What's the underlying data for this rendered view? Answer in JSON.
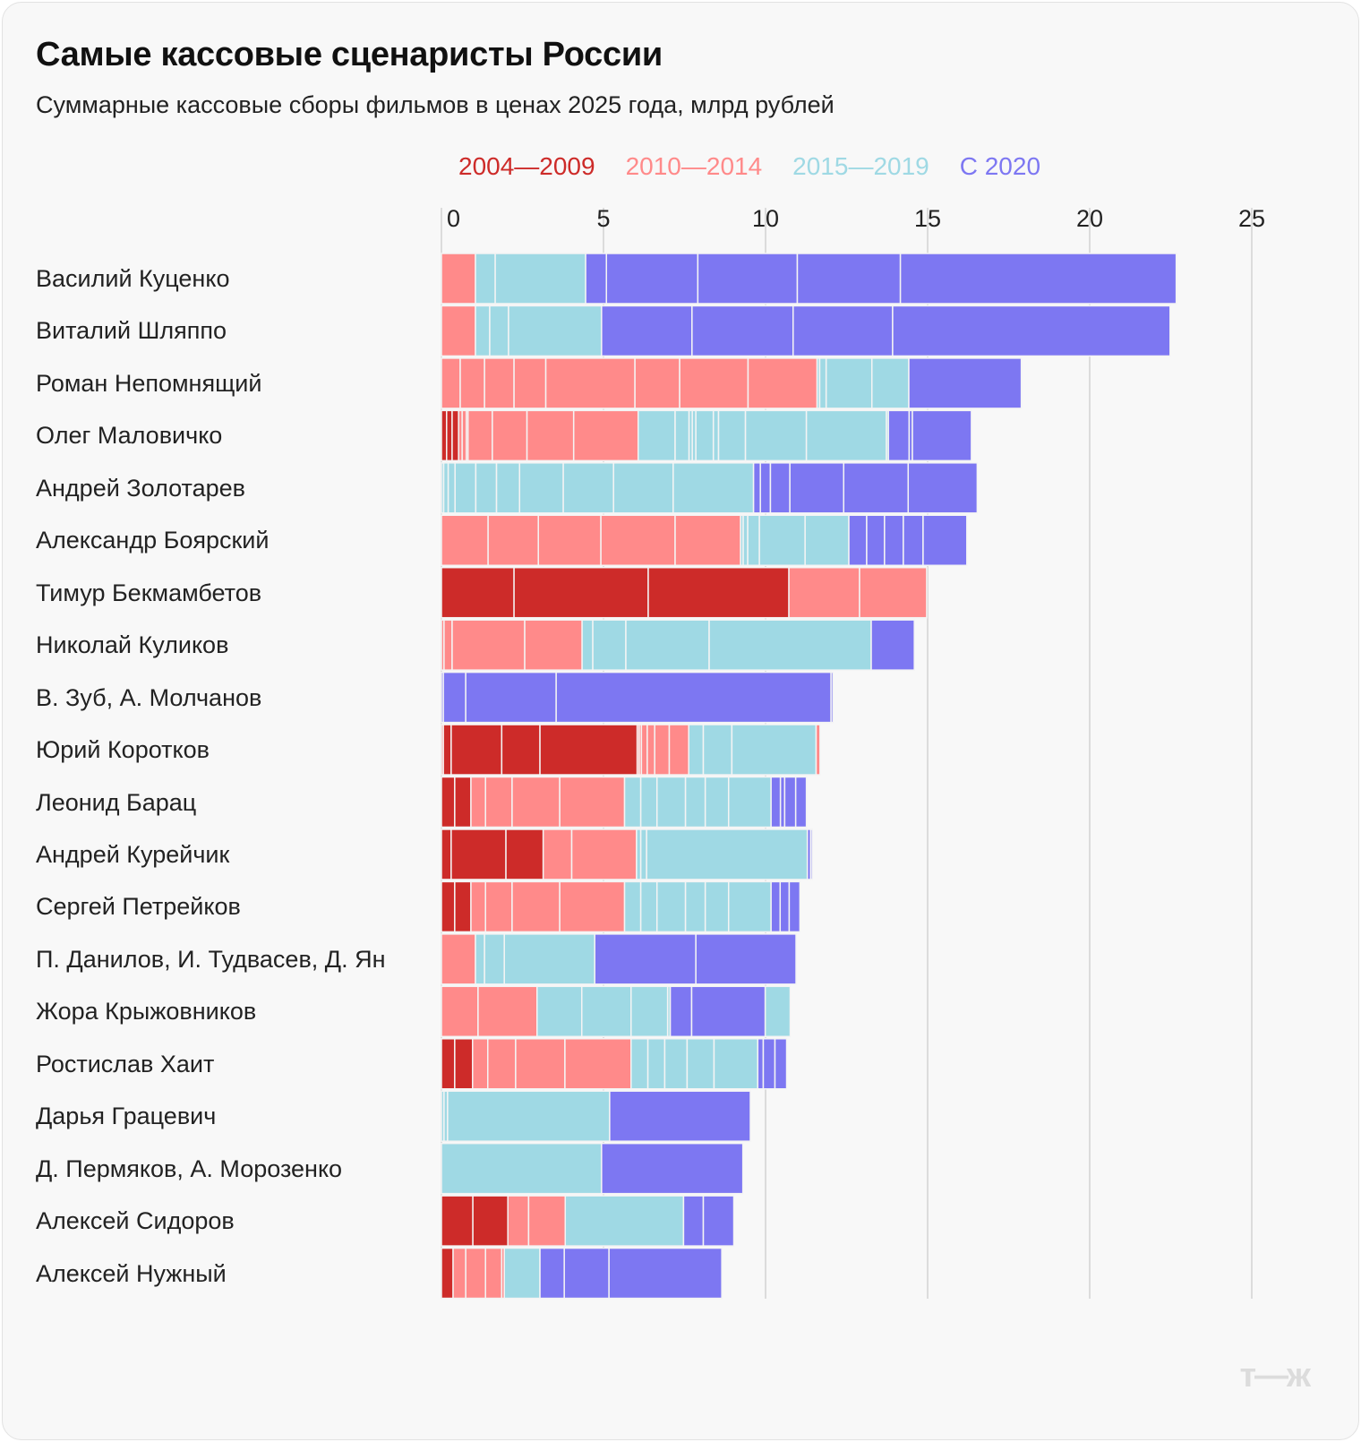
{
  "title": "Самые кассовые сценаристы России",
  "subtitle": "Суммарные кассовые сборы фильмов в ценах 2025 года, млрд рублей",
  "logo_text": "т—ж",
  "chart_data": {
    "type": "bar",
    "orientation": "horizontal",
    "stacked": true,
    "title": "Самые кассовые сценаристы России",
    "subtitle": "Суммарные кассовые сборы фильмов в ценах 2025 года, млрд рублей",
    "xlim": [
      0,
      25
    ],
    "x_ticks": [
      "0",
      "5",
      "10",
      "15",
      "20",
      "25"
    ],
    "x_tick_values": [
      0,
      5,
      10,
      15,
      20,
      25
    ],
    "grid": true,
    "legend_position": "top",
    "series": [
      {
        "name": "2004—2009",
        "color": "#CD2B29"
      },
      {
        "name": "2010—2014",
        "color": "#FF8A8A"
      },
      {
        "name": "2015—2019",
        "color": "#9FD9E4"
      },
      {
        "name": "С 2020",
        "color": "#7D77F2"
      }
    ],
    "rows": [
      {
        "label": "Василий Куценко",
        "segments": [
          [
            1,
            1.05
          ],
          [
            2,
            0.61
          ],
          [
            2,
            2.79
          ],
          [
            3,
            0.64
          ],
          [
            3,
            2.82
          ],
          [
            3,
            3.07
          ],
          [
            3,
            3.18
          ],
          [
            3,
            8.51
          ]
        ]
      },
      {
        "label": "Виталий Шляппо",
        "segments": [
          [
            1,
            1.05
          ],
          [
            2,
            0.44
          ],
          [
            2,
            0.58
          ],
          [
            2,
            2.87
          ],
          [
            3,
            2.79
          ],
          [
            3,
            3.12
          ],
          [
            3,
            3.07
          ],
          [
            3,
            8.56
          ]
        ]
      },
      {
        "label": "Роман Непомнящий",
        "segments": [
          [
            1,
            0.58
          ],
          [
            1,
            0.75
          ],
          [
            1,
            0.91
          ],
          [
            1,
            0.98
          ],
          [
            1,
            2.75
          ],
          [
            1,
            1.38
          ],
          [
            1,
            2.11
          ],
          [
            1,
            2.13
          ],
          [
            2,
            0.08
          ],
          [
            2,
            0.2
          ],
          [
            2,
            1.41
          ],
          [
            2,
            1.14
          ],
          [
            3,
            3.47
          ]
        ]
      },
      {
        "label": "Олег Маловичко",
        "segments": [
          [
            0,
            0.16
          ],
          [
            0,
            0.17
          ],
          [
            0,
            0.2
          ],
          [
            1,
            0.11
          ],
          [
            1,
            0.13
          ],
          [
            1,
            0.05
          ],
          [
            1,
            0.75
          ],
          [
            1,
            1.07
          ],
          [
            1,
            1.44
          ],
          [
            1,
            1.99
          ],
          [
            2,
            1.14
          ],
          [
            2,
            0.43
          ],
          [
            2,
            0.1
          ],
          [
            2,
            0.11
          ],
          [
            2,
            0.54
          ],
          [
            2,
            0.16
          ],
          [
            2,
            0.83
          ],
          [
            2,
            1.88
          ],
          [
            2,
            2.47
          ],
          [
            2,
            0.06
          ],
          [
            3,
            0.64
          ],
          [
            3,
            0.1
          ],
          [
            3,
            1.82
          ]
        ]
      },
      {
        "label": "Андрей Золотарев",
        "segments": [
          [
            2,
            0.07
          ],
          [
            2,
            0.14
          ],
          [
            2,
            0.21
          ],
          [
            2,
            0.64
          ],
          [
            2,
            0.64
          ],
          [
            2,
            0.71
          ],
          [
            2,
            1.35
          ],
          [
            2,
            1.55
          ],
          [
            2,
            1.84
          ],
          [
            2,
            2.48
          ],
          [
            3,
            0.21
          ],
          [
            3,
            0.31
          ],
          [
            3,
            0.6
          ],
          [
            3,
            1.66
          ],
          [
            3,
            1.99
          ],
          [
            3,
            2.13
          ]
        ]
      },
      {
        "label": "Александр Боярский",
        "segments": [
          [
            1,
            1.44
          ],
          [
            1,
            1.55
          ],
          [
            1,
            1.93
          ],
          [
            1,
            2.29
          ],
          [
            1,
            2.02
          ],
          [
            2,
            0.08
          ],
          [
            2,
            0.14
          ],
          [
            2,
            0.36
          ],
          [
            2,
            1.41
          ],
          [
            2,
            1.35
          ],
          [
            3,
            0.55
          ],
          [
            3,
            0.55
          ],
          [
            3,
            0.58
          ],
          [
            3,
            0.61
          ],
          [
            3,
            1.35
          ]
        ]
      },
      {
        "label": "Тимур Бекмамбетов",
        "segments": [
          [
            0,
            2.24
          ],
          [
            0,
            4.14
          ],
          [
            0,
            4.34
          ],
          [
            1,
            2.18
          ],
          [
            1,
            2.07
          ]
        ]
      },
      {
        "label": "Николай Куликов",
        "segments": [
          [
            1,
            0.08
          ],
          [
            1,
            0.25
          ],
          [
            1,
            2.24
          ],
          [
            1,
            1.77
          ],
          [
            2,
            0.33
          ],
          [
            2,
            1.02
          ],
          [
            2,
            2.57
          ],
          [
            2,
            5.0
          ],
          [
            3,
            1.33
          ]
        ]
      },
      {
        "label": "В. Зуб, А. Молчанов",
        "segments": [
          [
            3,
            0.06
          ],
          [
            3,
            0.69
          ],
          [
            3,
            2.79
          ],
          [
            3,
            8.48
          ],
          [
            3,
            0.06
          ]
        ]
      },
      {
        "label": "Юрий Коротков",
        "segments": [
          [
            1,
            0.06
          ],
          [
            0,
            0.24
          ],
          [
            0,
            1.56
          ],
          [
            0,
            1.18
          ],
          [
            0,
            3.0
          ],
          [
            1,
            0.06
          ],
          [
            1,
            0.07
          ],
          [
            1,
            0.18
          ],
          [
            1,
            0.23
          ],
          [
            1,
            0.45
          ],
          [
            1,
            0.6
          ],
          [
            2,
            0.45
          ],
          [
            2,
            0.88
          ],
          [
            2,
            2.6
          ],
          [
            1,
            0.12
          ]
        ]
      },
      {
        "label": "Леонид Барац",
        "segments": [
          [
            0,
            0.41
          ],
          [
            0,
            0.5
          ],
          [
            1,
            0.45
          ],
          [
            1,
            0.82
          ],
          [
            1,
            1.47
          ],
          [
            1,
            2.0
          ],
          [
            2,
            0.5
          ],
          [
            2,
            0.5
          ],
          [
            2,
            0.88
          ],
          [
            2,
            0.61
          ],
          [
            2,
            0.72
          ],
          [
            2,
            1.31
          ],
          [
            3,
            0.29
          ],
          [
            3,
            0.13
          ],
          [
            3,
            0.34
          ],
          [
            3,
            0.33
          ]
        ]
      },
      {
        "label": "Андрей Курейчик",
        "segments": [
          [
            0,
            0.3
          ],
          [
            0,
            1.69
          ],
          [
            0,
            1.15
          ],
          [
            1,
            0.88
          ],
          [
            1,
            2.0
          ],
          [
            2,
            0.13
          ],
          [
            2,
            0.18
          ],
          [
            2,
            4.96
          ],
          [
            3,
            0.1
          ],
          [
            3,
            0.05
          ]
        ]
      },
      {
        "label": "Сергей Петрейков",
        "segments": [
          [
            0,
            0.41
          ],
          [
            0,
            0.5
          ],
          [
            1,
            0.45
          ],
          [
            1,
            0.82
          ],
          [
            1,
            1.47
          ],
          [
            1,
            2.0
          ],
          [
            2,
            0.5
          ],
          [
            2,
            0.5
          ],
          [
            2,
            0.88
          ],
          [
            2,
            0.61
          ],
          [
            2,
            0.72
          ],
          [
            2,
            1.31
          ],
          [
            3,
            0.28
          ],
          [
            3,
            0.28
          ],
          [
            3,
            0.33
          ]
        ]
      },
      {
        "label": "П. Данилов, И. Тудвасев, Д. Ян",
        "segments": [
          [
            1,
            1.05
          ],
          [
            2,
            0.28
          ],
          [
            2,
            0.61
          ],
          [
            2,
            2.79
          ],
          [
            3,
            3.12
          ],
          [
            3,
            3.09
          ]
        ]
      },
      {
        "label": "Жора Крыжовников",
        "segments": [
          [
            1,
            1.13
          ],
          [
            1,
            1.82
          ],
          [
            2,
            1.38
          ],
          [
            2,
            1.52
          ],
          [
            2,
            1.13
          ],
          [
            2,
            0.08
          ],
          [
            3,
            0.66
          ],
          [
            3,
            2.27
          ],
          [
            2,
            0.77
          ]
        ]
      },
      {
        "label": "Ростислав Хаит",
        "segments": [
          [
            0,
            0.41
          ],
          [
            0,
            0.55
          ],
          [
            1,
            0.47
          ],
          [
            1,
            0.86
          ],
          [
            1,
            1.52
          ],
          [
            1,
            2.04
          ],
          [
            2,
            0.52
          ],
          [
            2,
            0.52
          ],
          [
            2,
            0.69
          ],
          [
            2,
            0.83
          ],
          [
            2,
            1.35
          ],
          [
            3,
            0.17
          ],
          [
            3,
            0.36
          ],
          [
            3,
            0.36
          ]
        ]
      },
      {
        "label": "Дарья Грацевич",
        "segments": [
          [
            2,
            0.08
          ],
          [
            2,
            0.11
          ],
          [
            2,
            5.0
          ],
          [
            3,
            4.34
          ]
        ]
      },
      {
        "label": "Д. Пермяков, А. Морозенко",
        "segments": [
          [
            2,
            4.94
          ],
          [
            3,
            4.36
          ]
        ]
      },
      {
        "label": "Алексей Сидоров",
        "segments": [
          [
            0,
            0.97
          ],
          [
            0,
            1.08
          ],
          [
            1,
            0.64
          ],
          [
            1,
            1.13
          ],
          [
            2,
            3.65
          ],
          [
            3,
            0.61
          ],
          [
            3,
            0.94
          ]
        ]
      },
      {
        "label": "Алексей Нужный",
        "segments": [
          [
            0,
            0.36
          ],
          [
            1,
            0.39
          ],
          [
            1,
            0.61
          ],
          [
            1,
            0.5
          ],
          [
            1,
            0.08
          ],
          [
            2,
            1.1
          ],
          [
            3,
            0.75
          ],
          [
            3,
            1.38
          ],
          [
            3,
            3.48
          ]
        ]
      }
    ]
  }
}
